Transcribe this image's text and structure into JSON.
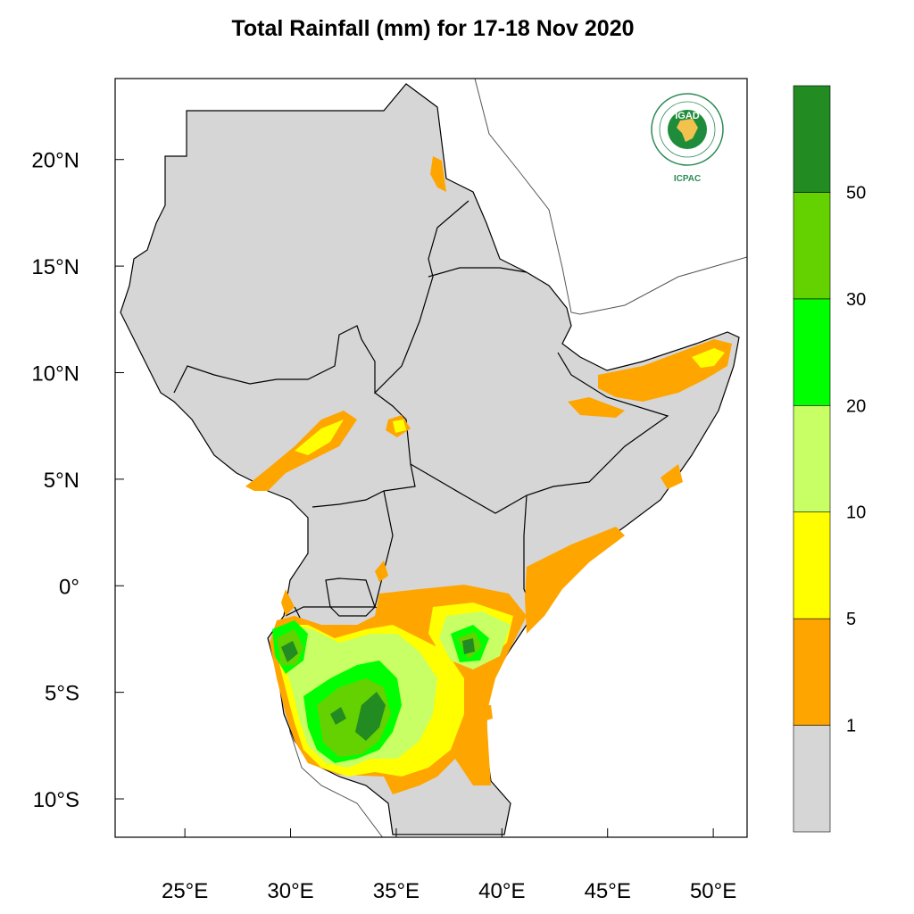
{
  "title": "Total Rainfall (mm) for 17-18 Nov 2020",
  "map": {
    "lon_range": [
      21.7,
      51.6
    ],
    "lat_range": [
      -11.8,
      23.8
    ],
    "lon_ticks": [
      {
        "value": 25,
        "label": "25°E"
      },
      {
        "value": 30,
        "label": "30°E"
      },
      {
        "value": 35,
        "label": "35°E"
      },
      {
        "value": 40,
        "label": "40°E"
      },
      {
        "value": 45,
        "label": "45°E"
      },
      {
        "value": 50,
        "label": "50°E"
      }
    ],
    "lat_ticks": [
      {
        "value": 20,
        "label": "20°N"
      },
      {
        "value": 15,
        "label": "15°N"
      },
      {
        "value": 10,
        "label": "10°N"
      },
      {
        "value": 5,
        "label": "5°N"
      },
      {
        "value": 0,
        "label": "0°"
      },
      {
        "value": -5,
        "label": "5°S"
      },
      {
        "value": -10,
        "label": "10°S"
      }
    ],
    "land_color": "#d6d6d6",
    "border_color": "#000000"
  },
  "colorbar": {
    "bins": [
      {
        "color": "#d6d6d6"
      },
      {
        "color": "#ffa500"
      },
      {
        "color": "#ffff00"
      },
      {
        "color": "#c8ff64"
      },
      {
        "color": "#00ff00"
      },
      {
        "color": "#64d200"
      },
      {
        "color": "#228b22"
      }
    ],
    "labels": [
      "1",
      "5",
      "10",
      "20",
      "30",
      "50"
    ]
  },
  "logo": {
    "name": "IGAD",
    "org": "ICPAC",
    "ring_text": "INTERGOVERNMENTAL AUTHORITY ON DEVELOPMENT"
  }
}
